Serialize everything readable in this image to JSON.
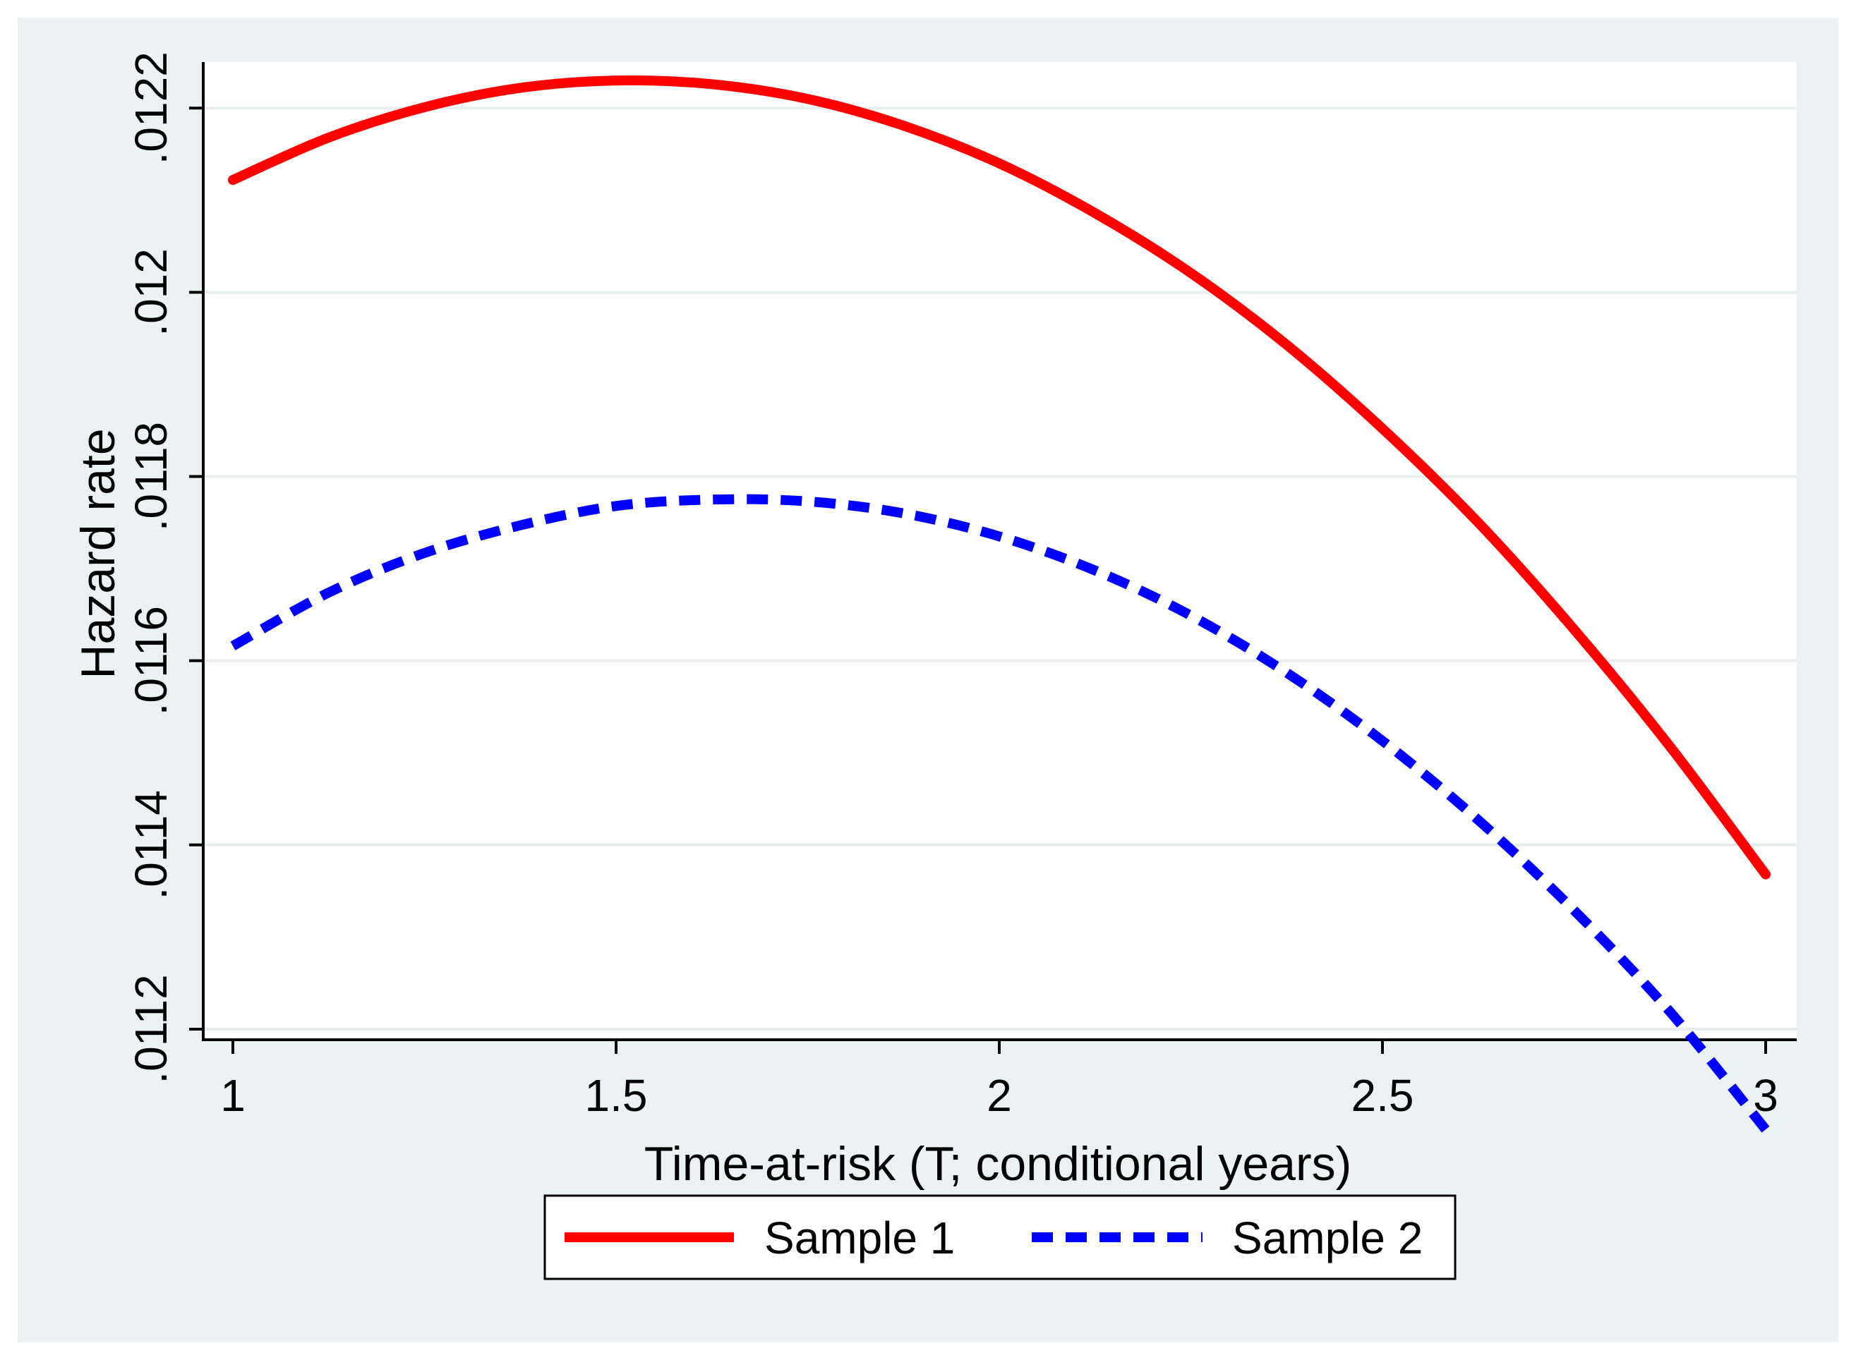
{
  "chart_data": {
    "type": "line",
    "title": "",
    "xlabel": "Time-at-risk (T; conditional years)",
    "ylabel": "Hazard rate",
    "xlim": [
      1,
      3
    ],
    "ylim": [
      0.01119,
      0.01225
    ],
    "x_ticks": [
      1,
      1.5,
      2,
      2.5,
      3
    ],
    "x_tick_labels": [
      "1",
      "1.5",
      "2",
      "2.5",
      "3"
    ],
    "y_ticks": [
      0.0112,
      0.0114,
      0.0116,
      0.0118,
      0.012,
      0.0122
    ],
    "y_tick_labels": [
      ".0112",
      ".0114",
      ".0116",
      ".0118",
      ".012",
      ".0122"
    ],
    "grid": true,
    "legend_position": "bottom",
    "series": [
      {
        "name": "Sample 1",
        "color": "#ff0000",
        "style": "solid",
        "x": [
          1,
          1.125,
          1.25,
          1.375,
          1.5,
          1.625,
          1.75,
          1.875,
          2,
          2.125,
          2.25,
          2.375,
          2.5,
          2.625,
          2.75,
          2.875,
          3
        ],
        "values": [
          0.012122,
          0.012168,
          0.012201,
          0.012222,
          0.01223,
          0.012226,
          0.01221,
          0.012181,
          0.01214,
          0.012086,
          0.012021,
          0.011943,
          0.011852,
          0.01175,
          0.011634,
          0.011507,
          0.011368
        ]
      },
      {
        "name": "Sample 2",
        "color": "#0000ff",
        "style": "dashed",
        "x": [
          1,
          1.125,
          1.25,
          1.375,
          1.5,
          1.625,
          1.75,
          1.875,
          2,
          2.125,
          2.25,
          2.375,
          2.5,
          2.625,
          2.75,
          2.875,
          3
        ],
        "values": [
          0.011616,
          0.011674,
          0.011717,
          0.011747,
          0.011768,
          0.011775,
          0.011773,
          0.01176,
          0.011735,
          0.011698,
          0.011649,
          0.011587,
          0.011513,
          0.011427,
          0.011329,
          0.011219,
          0.011091
        ]
      }
    ]
  }
}
